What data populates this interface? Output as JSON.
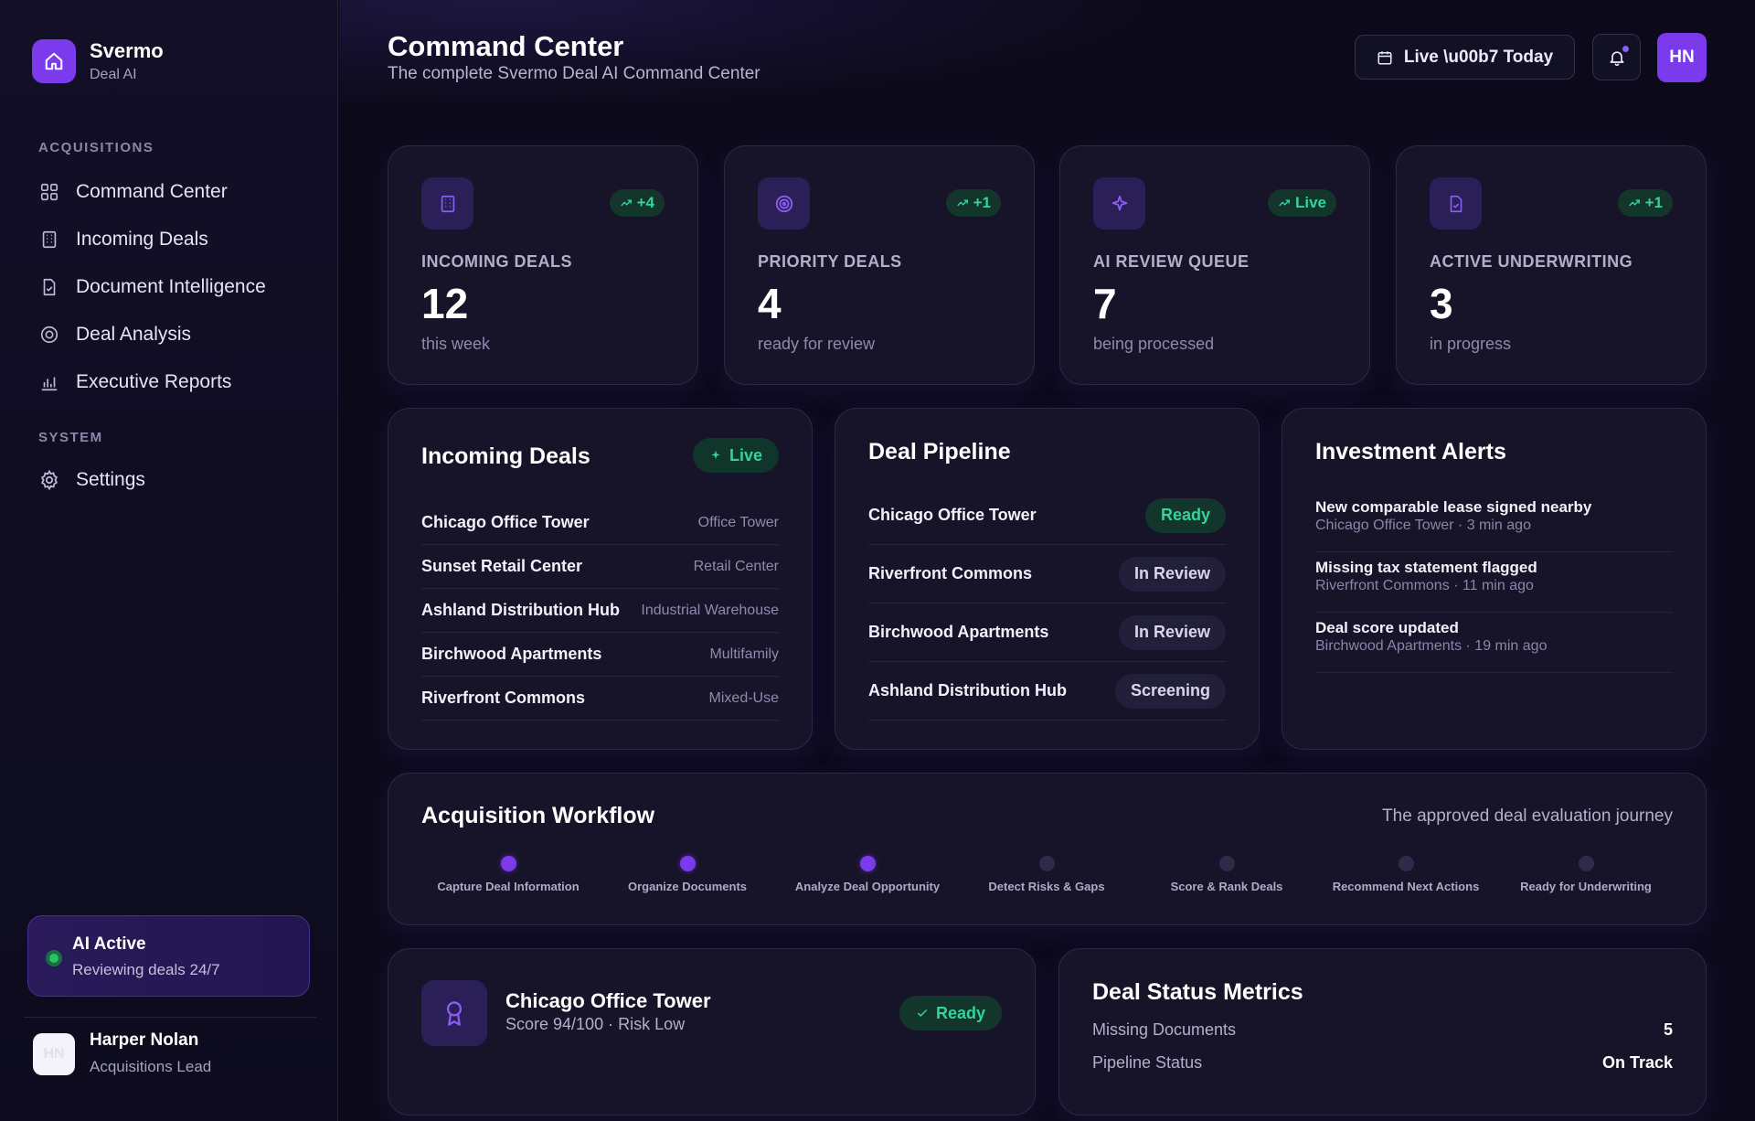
{
  "brand": {
    "name": "Svermo",
    "sub": "Deal AI"
  },
  "sidebar": {
    "sections": [
      {
        "label": "ACQUISITIONS"
      },
      {
        "label": "SYSTEM"
      }
    ],
    "items": [
      {
        "label": "Command Center",
        "icon": "grid-icon"
      },
      {
        "label": "Incoming Deals",
        "icon": "building-icon"
      },
      {
        "label": "Document Intelligence",
        "icon": "document-check-icon"
      },
      {
        "label": "Deal Analysis",
        "icon": "target-icon"
      },
      {
        "label": "Executive Reports",
        "icon": "bar-chart-icon"
      },
      {
        "label": "Settings",
        "icon": "gear-icon"
      }
    ],
    "ai_status": {
      "title": "AI Active",
      "sub": "Reviewing deals 24/7"
    },
    "user": {
      "initials": "HN",
      "name": "Harper Nolan",
      "role": "Acquisitions Lead"
    }
  },
  "header": {
    "title": "Command Center",
    "subtitle": "The complete Svermo Deal AI Command Center",
    "live_button": "Live \\u00b7 Today",
    "avatar": "HN"
  },
  "stats": [
    {
      "label": "INCOMING DEALS",
      "value": "12",
      "sub": "this week",
      "badge": "+4",
      "icon": "building-icon"
    },
    {
      "label": "PRIORITY DEALS",
      "value": "4",
      "sub": "ready for review",
      "badge": "+1",
      "icon": "target-icon"
    },
    {
      "label": "AI REVIEW QUEUE",
      "value": "7",
      "sub": "being processed",
      "badge": "Live",
      "icon": "sparkle-icon"
    },
    {
      "label": "ACTIVE UNDERWRITING",
      "value": "3",
      "sub": "in progress",
      "badge": "+1",
      "icon": "document-check-icon"
    }
  ],
  "incoming": {
    "title": "Incoming Deals",
    "badge": "Live",
    "rows": [
      {
        "name": "Chicago Office Tower",
        "type": "Office Tower"
      },
      {
        "name": "Sunset Retail Center",
        "type": "Retail Center"
      },
      {
        "name": "Ashland Distribution Hub",
        "type": "Industrial Warehouse"
      },
      {
        "name": "Birchwood Apartments",
        "type": "Multifamily"
      },
      {
        "name": "Riverfront Commons",
        "type": "Mixed-Use"
      }
    ]
  },
  "pipeline": {
    "title": "Deal Pipeline",
    "rows": [
      {
        "name": "Chicago Office Tower",
        "status": "Ready"
      },
      {
        "name": "Riverfront Commons",
        "status": "In Review"
      },
      {
        "name": "Birchwood Apartments",
        "status": "In Review"
      },
      {
        "name": "Ashland Distribution Hub",
        "status": "Screening"
      }
    ]
  },
  "alerts": {
    "title": "Investment Alerts",
    "items": [
      {
        "title": "New comparable lease signed nearby",
        "meta": "Chicago Office Tower · 3 min ago"
      },
      {
        "title": "Missing tax statement flagged",
        "meta": "Riverfront Commons · 11 min ago"
      },
      {
        "title": "Deal score updated",
        "meta": "Birchwood Apartments · 19 min ago"
      }
    ]
  },
  "workflow": {
    "title": "Acquisition Workflow",
    "subtitle": "The approved deal evaluation journey",
    "steps": [
      {
        "label": "Capture Deal Information",
        "done": true
      },
      {
        "label": "Organize Documents",
        "done": true
      },
      {
        "label": "Analyze Deal Opportunity",
        "done": true
      },
      {
        "label": "Detect Risks & Gaps",
        "done": false
      },
      {
        "label": "Score & Rank Deals",
        "done": false
      },
      {
        "label": "Recommend Next Actions",
        "done": false
      },
      {
        "label": "Ready for Underwriting",
        "done": false
      }
    ]
  },
  "best_deal": {
    "title": "Chicago Office Tower",
    "sub": "Score 94/100 · Risk Low",
    "status": "Ready",
    "icon": "award-icon"
  },
  "metrics": {
    "title": "Deal Status Metrics",
    "rows": [
      {
        "label": "Missing Documents",
        "value": "5"
      },
      {
        "label": "Pipeline Status",
        "value": "On Track"
      }
    ]
  },
  "colors": {
    "accent": "#7c3aed",
    "success": "#34d399",
    "background": "#0c0a1a",
    "card": "#17142a"
  }
}
